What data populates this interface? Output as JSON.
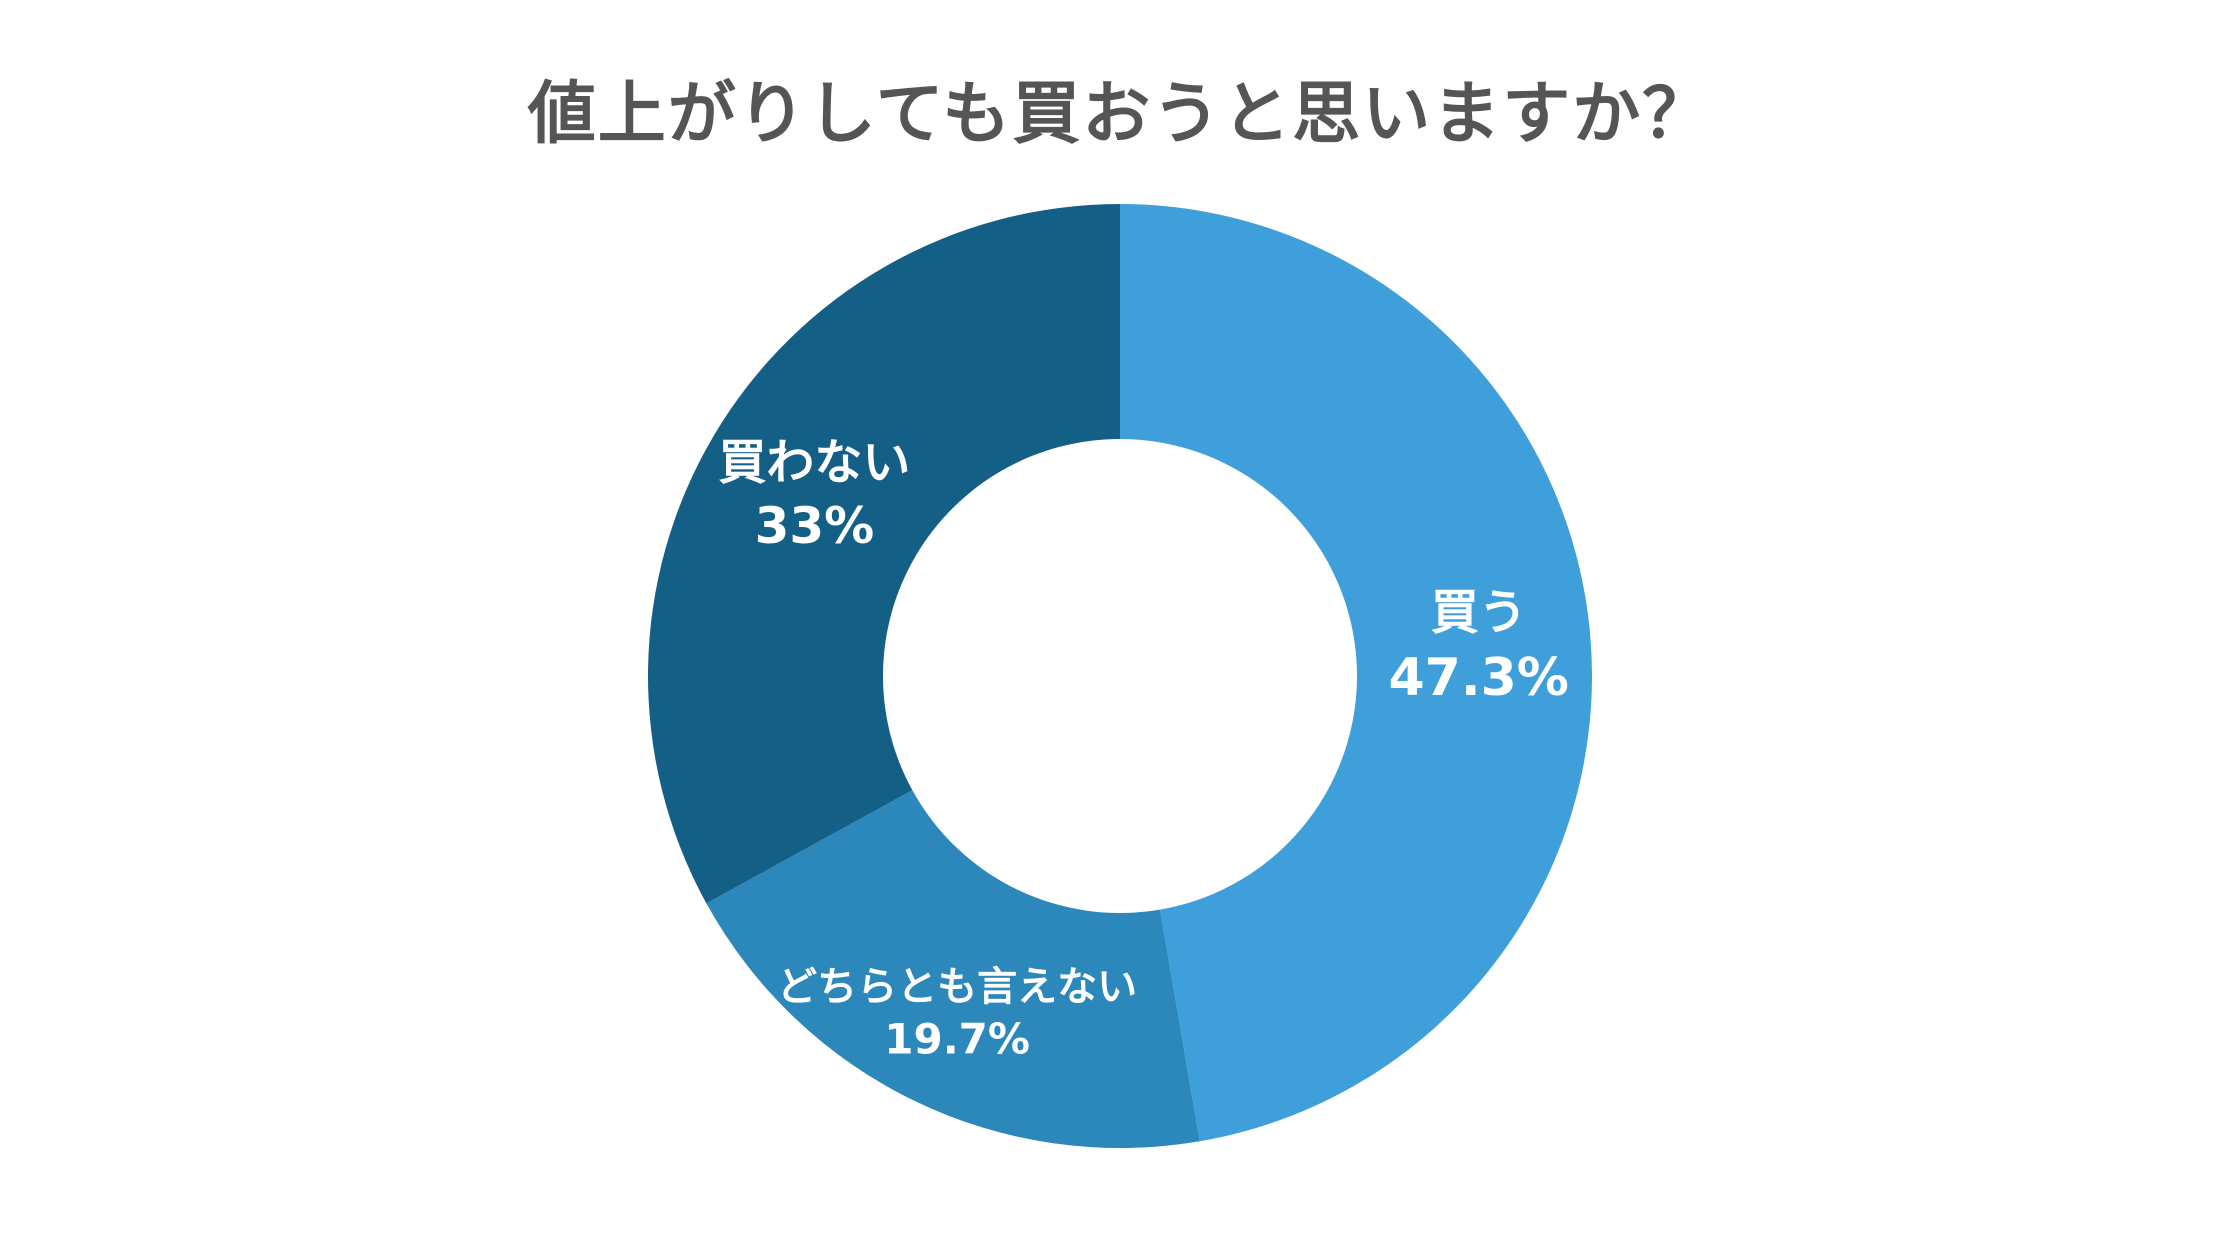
{
  "chart_data": {
    "type": "pie",
    "style": "donut",
    "title": "値上がりしても買おうと思いますか？",
    "slices": [
      {
        "label": "買う",
        "value": 47.3,
        "value_label": "47.3%",
        "color": "#3E9FDA"
      },
      {
        "label": "どちらとも言えない",
        "value": 19.7,
        "value_label": "19.7%",
        "color": "#2C88BA"
      },
      {
        "label": "買わない",
        "value": 33,
        "value_label": "33%",
        "color": "#135F86"
      }
    ],
    "start": "top",
    "direction": "clockwise",
    "legend": "none"
  }
}
